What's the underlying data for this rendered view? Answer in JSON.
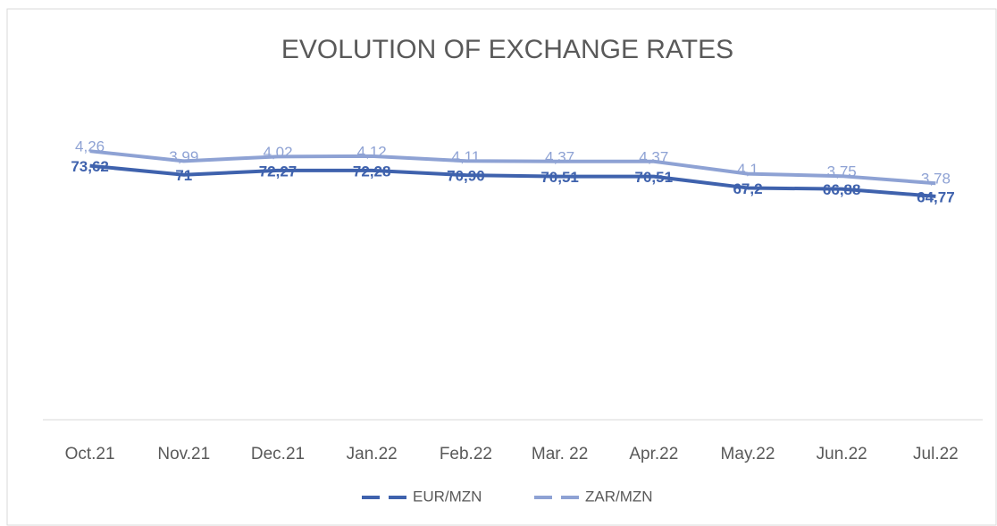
{
  "chart_data": {
    "type": "line",
    "stacked": true,
    "title": "EVOLUTION OF EXCHANGE RATES",
    "categories": [
      "Oct.21",
      "Nov.21",
      "Dec.21",
      "Jan.22",
      "Feb.22",
      "Mar. 22",
      "Apr.22",
      "May.22",
      "Jun.22",
      "Jul.22"
    ],
    "series": [
      {
        "name": "EUR/MZN",
        "color": "#3f62ad",
        "values": [
          73.62,
          71,
          72.27,
          72.28,
          70.9,
          70.51,
          70.51,
          67.2,
          66.88,
          64.77
        ],
        "value_labels": [
          "73,62",
          "71",
          "72,27",
          "72,28",
          "70,90",
          "70,51",
          "70,51",
          "67,2",
          "66,88",
          "64,77"
        ]
      },
      {
        "name": "ZAR/MZN",
        "color": "#8ea2d4",
        "values": [
          4.26,
          3.99,
          4.02,
          4.12,
          4.11,
          4.37,
          4.37,
          4.1,
          3.75,
          3.78
        ],
        "value_labels": [
          "4,26",
          "3,99",
          "4,02",
          "4,12",
          "4,11",
          "4,37",
          "4,37",
          "4,1",
          "3,75",
          "3,78"
        ]
      }
    ],
    "ylim": [
      0,
      80
    ],
    "legend": "bottom"
  }
}
